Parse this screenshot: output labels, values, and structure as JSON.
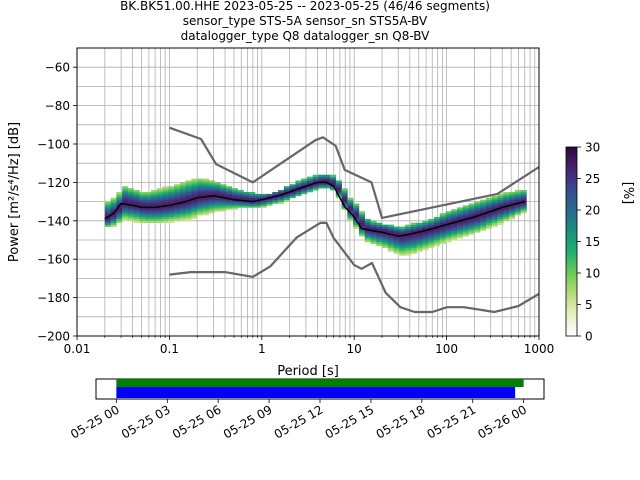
{
  "title": {
    "line1": "BK.BK51.00.HHE   2023-05-25 -- 2023-05-25  (46/46 segments)",
    "line2": "sensor_type STS-5A sensor_sn STS5A-BV",
    "line3": "datalogger_type Q8 datalogger_sn Q8-BV"
  },
  "colorbar": {
    "label": "[%]",
    "range": [
      0,
      30
    ],
    "ticks": [
      "0",
      "5",
      "10",
      "15",
      "20",
      "25",
      "30"
    ],
    "colormap": [
      "#ffffff",
      "#e8f0c8",
      "#b8dc78",
      "#6cc858",
      "#22b070",
      "#1a9080",
      "#2a6c8c",
      "#3a4890",
      "#48226c",
      "#300838"
    ]
  },
  "chart_data": [
    {
      "type": "heatmap",
      "subtype": "probabilistic power spectral density",
      "xlabel": "Period [s]",
      "ylabel": "Power [m²/s⁴/Hz] [dB]",
      "xscale": "log",
      "xlim": [
        0.01,
        1000
      ],
      "ylim": [
        -200,
        -50
      ],
      "xticks": [
        "0.01",
        "0.1",
        "1",
        "10",
        "100",
        "1000"
      ],
      "yticks": [
        "−200",
        "−180",
        "−160",
        "−140",
        "−120",
        "−100",
        "−80",
        "−60"
      ],
      "grid": true,
      "series": [
        {
          "name": "",
          "role": "mode",
          "color": "#000000",
          "points": [
            [
              0.02,
              -139
            ],
            [
              0.025,
              -136
            ],
            [
              0.03,
              -131
            ],
            [
              0.04,
              -132
            ],
            [
              0.05,
              -133
            ],
            [
              0.07,
              -133
            ],
            [
              0.1,
              -132
            ],
            [
              0.15,
              -130
            ],
            [
              0.2,
              -128
            ],
            [
              0.3,
              -127
            ],
            [
              0.5,
              -129
            ],
            [
              0.8,
              -130
            ],
            [
              1,
              -129
            ],
            [
              1.5,
              -127
            ],
            [
              2,
              -125
            ],
            [
              3,
              -122
            ],
            [
              4,
              -120
            ],
            [
              5,
              -120
            ],
            [
              6,
              -122
            ],
            [
              7,
              -128
            ],
            [
              8,
              -133
            ],
            [
              10,
              -138
            ],
            [
              12,
              -144
            ],
            [
              15,
              -145
            ],
            [
              20,
              -146
            ],
            [
              30,
              -148
            ],
            [
              40,
              -147
            ],
            [
              60,
              -145
            ],
            [
              100,
              -142
            ],
            [
              200,
              -138
            ],
            [
              400,
              -133
            ],
            [
              700,
              -130
            ]
          ]
        },
        {
          "name": "",
          "role": "new high noise model",
          "color": "#666666",
          "points": [
            [
              0.1,
              -91.5
            ],
            [
              0.22,
              -97.4
            ],
            [
              0.32,
              -110.5
            ],
            [
              0.8,
              -120
            ],
            [
              3.8,
              -98
            ],
            [
              4.6,
              -96.5
            ],
            [
              6.3,
              -101
            ],
            [
              7.9,
              -113.5
            ],
            [
              15.4,
              -120
            ],
            [
              20,
              -138.5
            ],
            [
              354.8,
              -126
            ],
            [
              1000,
              -112
            ]
          ]
        },
        {
          "name": "",
          "role": "new low noise model",
          "color": "#666666",
          "points": [
            [
              0.1,
              -168
            ],
            [
              0.17,
              -166.7
            ],
            [
              0.4,
              -166.7
            ],
            [
              0.8,
              -169.2
            ],
            [
              1.24,
              -163.7
            ],
            [
              2.4,
              -148.6
            ],
            [
              4.3,
              -141.1
            ],
            [
              5,
              -141.1
            ],
            [
              6,
              -149
            ],
            [
              10,
              -163
            ],
            [
              12,
              -165
            ],
            [
              15.6,
              -162
            ],
            [
              21.9,
              -177.5
            ],
            [
              31.6,
              -185
            ],
            [
              45,
              -187.5
            ],
            [
              70,
              -187.5
            ],
            [
              101,
              -185
            ],
            [
              154,
              -185
            ],
            [
              328,
              -187.5
            ],
            [
              600,
              -184.4
            ],
            [
              1000,
              -178
            ]
          ]
        }
      ],
      "density_band": {
        "color_scale_max_percent": 30,
        "periods": [
          0.02,
          0.025,
          0.03,
          0.04,
          0.05,
          0.07,
          0.1,
          0.15,
          0.2,
          0.3,
          0.5,
          0.8,
          1,
          1.5,
          2,
          3,
          4,
          5,
          6,
          7,
          8,
          10,
          12,
          15,
          20,
          30,
          40,
          60,
          100,
          200,
          400,
          700
        ],
        "upper_db": [
          -130,
          -128,
          -122,
          -124,
          -126,
          -124,
          -122,
          -119,
          -118,
          -120,
          -124,
          -126,
          -127,
          -124,
          -121,
          -118,
          -116,
          -116,
          -118,
          -122,
          -128,
          -132,
          -138,
          -141,
          -142,
          -144,
          -142,
          -140,
          -135,
          -130,
          -126,
          -124
        ],
        "lower_db": [
          -143,
          -142,
          -139,
          -140,
          -141,
          -141,
          -140,
          -139,
          -137,
          -135,
          -133,
          -133,
          -132,
          -130,
          -128,
          -125,
          -123,
          -123,
          -125,
          -132,
          -138,
          -144,
          -150,
          -152,
          -154,
          -158,
          -157,
          -154,
          -150,
          -146,
          -140,
          -134
        ]
      }
    },
    {
      "type": "timeline",
      "tick_labels": [
        "05-25 00",
        "05-25 03",
        "05-25 06",
        "05-25 09",
        "05-25 12",
        "05-25 15",
        "05-25 18",
        "05-25 21",
        "05-26 00"
      ],
      "range_hours": [
        -1.2,
        25.2
      ],
      "bars": [
        {
          "role": "data coverage",
          "color": "#008000",
          "start_hours": 0,
          "end_hours": 24.0
        },
        {
          "role": "psd segments",
          "color": "#0000ff",
          "start_hours": 0,
          "end_hours": 23.5
        }
      ]
    }
  ]
}
